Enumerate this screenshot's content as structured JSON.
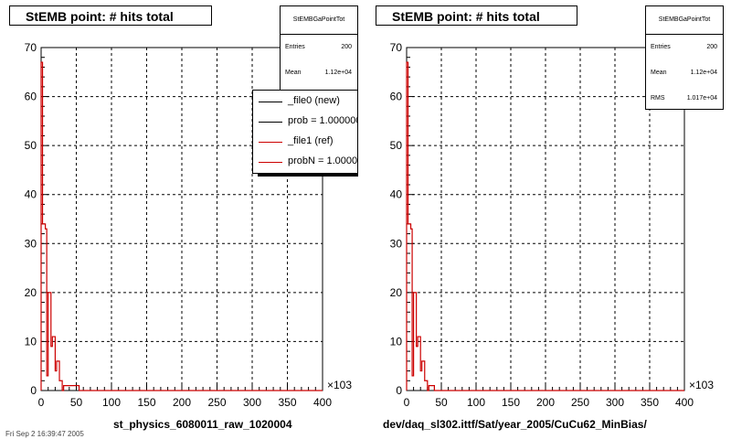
{
  "colors": {
    "new": "#000000",
    "ref": "#cc0000",
    "grid": "#000000"
  },
  "panels": [
    {
      "title": "StEMB point: # hits total",
      "stats": {
        "name": "StEMBGaPointTot",
        "rows": [
          {
            "k": "Entries",
            "v": "200"
          },
          {
            "k": "Mean",
            "v": "1.12e+04"
          }
        ]
      },
      "legend": {
        "entries": [
          {
            "label": "_file0 (new)",
            "color": "#000000"
          },
          {
            "label": "prob = 1.000000",
            "color": "#000000"
          },
          {
            "label": "_file1 (ref)",
            "color": "#cc0000"
          },
          {
            "label": "probN = 1.000000",
            "color": "#cc0000"
          }
        ]
      },
      "xlabel": "st_physics_6080011_raw_1020004"
    },
    {
      "title": "StEMB point: # hits total",
      "stats": {
        "name": "StEMBGaPointTot",
        "rows": [
          {
            "k": "Entries",
            "v": "200"
          },
          {
            "k": "Mean",
            "v": "1.12e+04"
          },
          {
            "k": "RMS",
            "v": "1.017e+04"
          }
        ]
      },
      "legend": null,
      "xlabel": "dev/daq_sl302.ittf/Sat/year_2005/CuCu62_MinBias/"
    }
  ],
  "footer": "Fri Sep 2 16:39:47 2005",
  "chart_data": [
    {
      "type": "histogram",
      "title": "StEMB point: # hits total",
      "xlabel": "st_physics_6080011_raw_1020004",
      "x_multiplier": "×10^3",
      "xlim": [
        0,
        400
      ],
      "ylim": [
        0,
        70
      ],
      "xticks": [
        0,
        50,
        100,
        150,
        200,
        250,
        300,
        350,
        400
      ],
      "yticks": [
        0,
        10,
        20,
        30,
        40,
        50,
        60,
        70
      ],
      "grid": true,
      "bin_width": 2,
      "series": [
        {
          "name": "_file1 (ref)",
          "color": "#cc0000",
          "values": [
            67,
            34,
            34,
            33,
            3,
            20,
            20,
            9,
            11,
            11,
            4,
            6,
            6,
            2,
            2,
            0,
            1,
            1,
            1,
            1,
            1,
            1,
            1,
            1,
            1,
            1,
            1
          ]
        }
      ]
    },
    {
      "type": "histogram",
      "title": "StEMB point: # hits total",
      "xlabel": "dev/daq_sl302.ittf/Sat/year_2005/CuCu62_MinBias/",
      "x_multiplier": "×10^3",
      "xlim": [
        0,
        400
      ],
      "ylim": [
        0,
        70
      ],
      "xticks": [
        0,
        50,
        100,
        150,
        200,
        250,
        300,
        350,
        400
      ],
      "yticks": [
        0,
        10,
        20,
        30,
        40,
        50,
        60,
        70
      ],
      "grid": true,
      "bin_width": 2,
      "series": [
        {
          "name": "_file1 (ref)",
          "color": "#cc0000",
          "values": [
            67,
            34,
            34,
            33,
            3,
            20,
            20,
            9,
            11,
            11,
            4,
            6,
            6,
            2,
            2,
            0,
            1,
            1,
            1,
            1
          ]
        }
      ]
    }
  ]
}
